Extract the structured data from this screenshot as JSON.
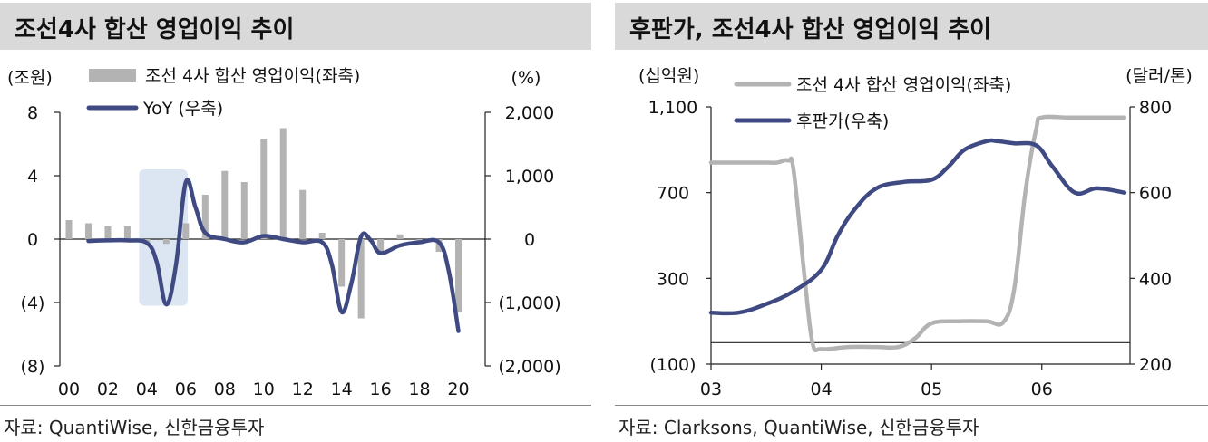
{
  "left": {
    "title": "조선4사 합산 영업이익 추이",
    "source": "자료: QuantiWise, 신한금융투자",
    "chart_data": {
      "type": "bar+line",
      "y_left_unit": "(조원)",
      "y_right_unit": "(%)",
      "y_left_ticks": [
        "8",
        "4",
        "0",
        "(4)",
        "(8)"
      ],
      "y_left_tick_values": [
        8,
        4,
        0,
        -4,
        -8
      ],
      "y_right_ticks": [
        "2,000",
        "1,000",
        "0",
        "(1,000)",
        "(2,000)"
      ],
      "y_right_tick_values": [
        2000,
        1000,
        0,
        -1000,
        -2000
      ],
      "y_left_lim": [
        -8,
        8
      ],
      "y_right_lim": [
        -2000,
        2000
      ],
      "x_ticks": [
        "00",
        "02",
        "04",
        "06",
        "08",
        "10",
        "12",
        "14",
        "16",
        "18",
        "20"
      ],
      "x_tick_values": [
        2000,
        2002,
        2004,
        2006,
        2008,
        2010,
        2012,
        2014,
        2016,
        2018,
        2020
      ],
      "x_lim": [
        2000,
        2021
      ],
      "series": [
        {
          "name": "조선 4사 합산 영업이익(좌축)",
          "type": "bar",
          "color": "#b3b3b3",
          "x": [
            2000,
            2001,
            2002,
            2003,
            2004,
            2005,
            2006,
            2007,
            2008,
            2009,
            2010,
            2011,
            2012,
            2013,
            2014,
            2015,
            2016,
            2017,
            2018,
            2019,
            2020
          ],
          "values": [
            1.2,
            1.0,
            0.8,
            0.8,
            -0.2,
            -0.3,
            1.0,
            2.8,
            4.3,
            3.6,
            6.3,
            7.0,
            3.1,
            0.4,
            -3.0,
            -5.0,
            -1.0,
            0.3,
            -0.2,
            -0.8,
            -4.6
          ]
        },
        {
          "name": "YoY (우축)",
          "type": "line",
          "color": "#3f4a82",
          "x": [
            2001,
            2002,
            2003,
            2004,
            2004.5,
            2005,
            2005.5,
            2006,
            2006.5,
            2007,
            2008,
            2009,
            2010,
            2011,
            2012,
            2013,
            2013.5,
            2014,
            2014.5,
            2015,
            2015.5,
            2016,
            2017,
            2018,
            2019,
            2019.5,
            2020
          ],
          "values": [
            -30,
            -20,
            -20,
            -60,
            -350,
            -1030,
            -400,
            900,
            500,
            100,
            0,
            -50,
            50,
            0,
            -50,
            -50,
            -400,
            -1150,
            -700,
            40,
            -20,
            -220,
            -100,
            -50,
            -50,
            -500,
            -1450
          ]
        }
      ],
      "annotation": {
        "type": "highlight-box",
        "x_range": [
          2003.6,
          2006.1
        ],
        "y_right_range": [
          -1050,
          1100
        ],
        "color": "#dce6f2"
      }
    }
  },
  "right": {
    "title": "후판가, 조선4사 합산 영업이익 추이",
    "source": "자료: Clarksons, QuantiWise, 신한금융투자",
    "chart_data": {
      "type": "line",
      "y_left_unit": "(십억원)",
      "y_right_unit": "(달러/톤)",
      "y_left_ticks": [
        "1,100",
        "700",
        "300",
        "(100)"
      ],
      "y_left_tick_values": [
        1100,
        700,
        300,
        -100
      ],
      "y_right_ticks": [
        "800",
        "600",
        "400",
        "200"
      ],
      "y_right_tick_values": [
        800,
        600,
        400,
        200
      ],
      "y_left_lim": [
        -100,
        1100
      ],
      "y_right_lim": [
        200,
        800
      ],
      "x_ticks": [
        "03",
        "04",
        "05",
        "06"
      ],
      "x_tick_values": [
        2003,
        2004,
        2005,
        2006
      ],
      "x_lim": [
        2003,
        2006.8
      ],
      "series": [
        {
          "name": "조선 4사 합산 영업이익(좌축)",
          "color": "#b3b3b3",
          "axis": "left",
          "x": [
            2003,
            2003.25,
            2003.5,
            2003.6,
            2003.7,
            2003.75,
            2003.85,
            2003.92,
            2004,
            2004.25,
            2004.5,
            2004.7,
            2004.85,
            2005,
            2005.25,
            2005.5,
            2005.65,
            2005.75,
            2005.85,
            2005.95,
            2006,
            2006.25,
            2006.5,
            2006.75
          ],
          "values": [
            840,
            840,
            840,
            840,
            850,
            800,
            300,
            0,
            -30,
            -20,
            -20,
            -20,
            20,
            90,
            100,
            100,
            95,
            250,
            700,
            1000,
            1050,
            1050,
            1050,
            1050
          ]
        },
        {
          "name": "후판가(우축)",
          "color": "#3f4a82",
          "axis": "right",
          "x": [
            2003,
            2003.25,
            2003.5,
            2003.75,
            2004,
            2004.15,
            2004.3,
            2004.5,
            2004.75,
            2005,
            2005.15,
            2005.3,
            2005.5,
            2005.6,
            2005.75,
            2005.95,
            2006.1,
            2006.3,
            2006.5,
            2006.75
          ],
          "values": [
            320,
            320,
            340,
            370,
            420,
            500,
            560,
            610,
            625,
            630,
            660,
            700,
            720,
            720,
            715,
            710,
            660,
            600,
            610,
            600
          ]
        }
      ]
    }
  }
}
